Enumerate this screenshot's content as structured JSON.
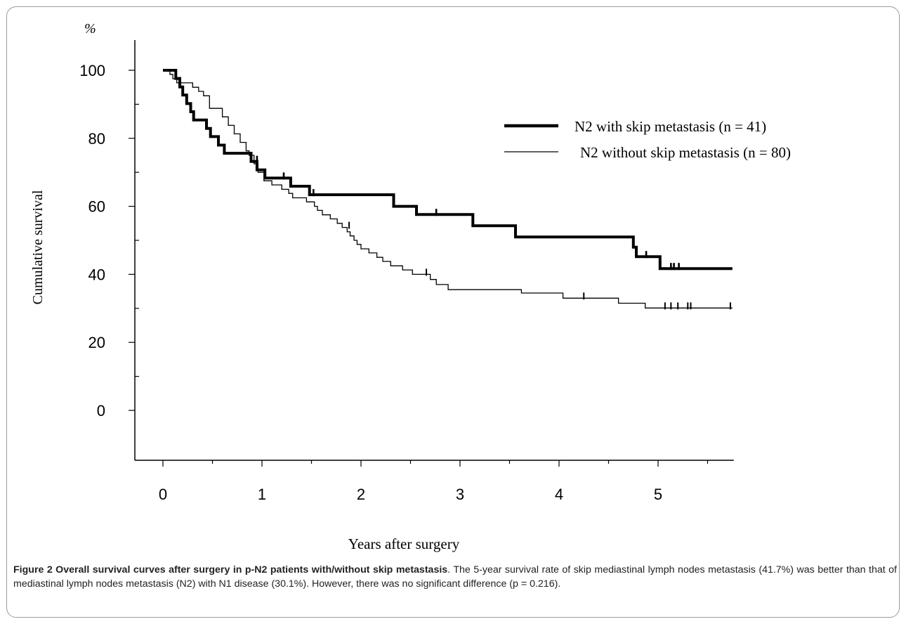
{
  "chart_data": {
    "type": "line",
    "subtype": "kaplan-meier-step",
    "y_unit_label": "%",
    "xlabel": "Years after surgery",
    "ylabel": "Cumulative survival",
    "xlim": [
      -0.3,
      5.75
    ],
    "ylim": [
      -10,
      108
    ],
    "x_ticks": [
      0,
      1,
      2,
      3,
      4,
      5
    ],
    "y_ticks": [
      0,
      20,
      40,
      60,
      80,
      100
    ],
    "grid": false,
    "legend_position": "top-right",
    "series": [
      {
        "name": "N2 with skip metastasis (n = 41)",
        "line_style": "thick",
        "color": "#000000",
        "steps": [
          [
            0,
            100
          ],
          [
            0.13,
            97.6
          ],
          [
            0.17,
            95.1
          ],
          [
            0.2,
            92.7
          ],
          [
            0.24,
            90.2
          ],
          [
            0.28,
            87.8
          ],
          [
            0.31,
            85.4
          ],
          [
            0.44,
            82.9
          ],
          [
            0.48,
            80.5
          ],
          [
            0.56,
            78.0
          ],
          [
            0.62,
            75.6
          ],
          [
            0.89,
            73.2
          ],
          [
            0.95,
            70.7
          ],
          [
            1.03,
            68.3
          ],
          [
            1.29,
            65.9
          ],
          [
            1.48,
            63.4
          ],
          [
            2.33,
            60.0
          ],
          [
            2.56,
            57.6
          ],
          [
            3.13,
            54.3
          ],
          [
            3.56,
            51.0
          ],
          [
            4.75,
            48.0
          ],
          [
            4.78,
            45.2
          ],
          [
            5.02,
            41.7
          ]
        ],
        "end_x": 5.75,
        "censored": [
          [
            0.95,
            73.2
          ],
          [
            1.22,
            68.3
          ],
          [
            1.52,
            63.4
          ],
          [
            2.76,
            57.6
          ],
          [
            4.88,
            45.2
          ],
          [
            5.13,
            41.7
          ],
          [
            5.16,
            41.7
          ],
          [
            5.21,
            41.7
          ]
        ]
      },
      {
        "name": "N2 without skip metastasis (n = 80)",
        "line_style": "thin",
        "color": "#000000",
        "steps": [
          [
            0,
            100
          ],
          [
            0.07,
            98.8
          ],
          [
            0.1,
            97.5
          ],
          [
            0.14,
            96.3
          ],
          [
            0.3,
            95.0
          ],
          [
            0.36,
            93.8
          ],
          [
            0.41,
            92.5
          ],
          [
            0.47,
            88.8
          ],
          [
            0.6,
            86.3
          ],
          [
            0.66,
            83.8
          ],
          [
            0.72,
            81.3
          ],
          [
            0.78,
            78.8
          ],
          [
            0.84,
            76.3
          ],
          [
            0.87,
            75.0
          ],
          [
            0.92,
            72.5
          ],
          [
            0.96,
            70.0
          ],
          [
            1.02,
            67.5
          ],
          [
            1.1,
            66.3
          ],
          [
            1.2,
            65.0
          ],
          [
            1.27,
            63.8
          ],
          [
            1.31,
            62.5
          ],
          [
            1.45,
            61.3
          ],
          [
            1.53,
            60.0
          ],
          [
            1.56,
            58.8
          ],
          [
            1.61,
            57.5
          ],
          [
            1.69,
            56.3
          ],
          [
            1.76,
            55.0
          ],
          [
            1.81,
            53.8
          ],
          [
            1.86,
            52.5
          ],
          [
            1.89,
            51.3
          ],
          [
            1.93,
            50.0
          ],
          [
            1.96,
            48.8
          ],
          [
            2.0,
            47.5
          ],
          [
            2.08,
            46.3
          ],
          [
            2.16,
            45.0
          ],
          [
            2.22,
            43.8
          ],
          [
            2.3,
            42.5
          ],
          [
            2.42,
            41.3
          ],
          [
            2.52,
            40.0
          ],
          [
            2.7,
            38.5
          ],
          [
            2.76,
            37.0
          ],
          [
            2.88,
            35.5
          ],
          [
            3.62,
            34.5
          ],
          [
            4.04,
            33.0
          ],
          [
            4.6,
            31.5
          ],
          [
            4.87,
            30.1
          ]
        ],
        "end_x": 5.75,
        "censored": [
          [
            1.88,
            53.8
          ],
          [
            2.66,
            40.0
          ],
          [
            4.25,
            33.0
          ],
          [
            5.07,
            30.1
          ],
          [
            5.13,
            30.1
          ],
          [
            5.2,
            30.1
          ],
          [
            5.3,
            30.1
          ],
          [
            5.33,
            30.1
          ],
          [
            5.73,
            30.1
          ]
        ]
      }
    ]
  },
  "caption": {
    "title": "Figure 2 Overall survival curves after surgery in p-N2 patients with/without skip metastasis",
    "body": ". The 5-year survival rate of skip mediastinal lymph nodes metastasis (41.7%) was better than that of mediastinal lymph nodes metastasis (N2) with N1 disease (30.1%). However, there was no significant difference (p = 0.216)."
  }
}
